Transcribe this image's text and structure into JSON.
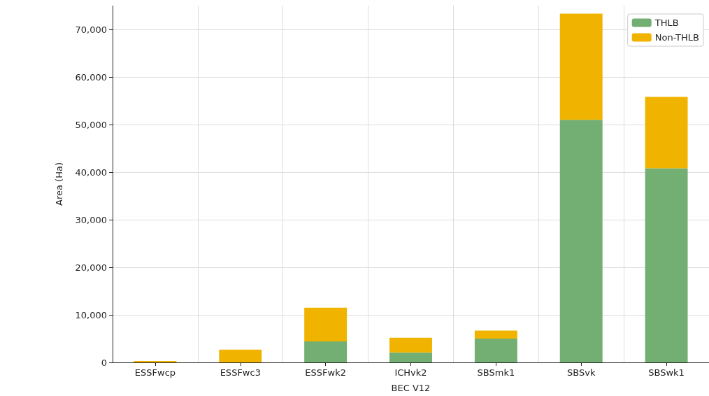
{
  "chart_data": {
    "type": "bar",
    "xlabel": "BEC V12",
    "ylabel": "Area (Ha)",
    "categories": [
      "ESSFwcp",
      "ESSFwc3",
      "ESSFwk2",
      "ICHvk2",
      "SBSmk1",
      "SBSvk",
      "SBSwk1"
    ],
    "stacked": true,
    "series": [
      {
        "name": "THLB",
        "color": "#73ae73",
        "values": [
          0,
          0,
          4400,
          2100,
          5000,
          51000,
          40800
        ]
      },
      {
        "name": "Non-THLB",
        "color": "#f0b400",
        "values": [
          300,
          2700,
          7100,
          3100,
          1700,
          22300,
          15000
        ]
      }
    ],
    "ylim": [
      0,
      75000
    ],
    "yticks": [
      {
        "value": 0,
        "label": "0"
      },
      {
        "value": 10000,
        "label": "10,000"
      },
      {
        "value": 20000,
        "label": "20,000"
      },
      {
        "value": 30000,
        "label": "30,000"
      },
      {
        "value": 40000,
        "label": "40,000"
      },
      {
        "value": 50000,
        "label": "50,000"
      },
      {
        "value": 60000,
        "label": "60,000"
      },
      {
        "value": 70000,
        "label": "70,000"
      }
    ],
    "grid": true,
    "legend": "top right"
  }
}
